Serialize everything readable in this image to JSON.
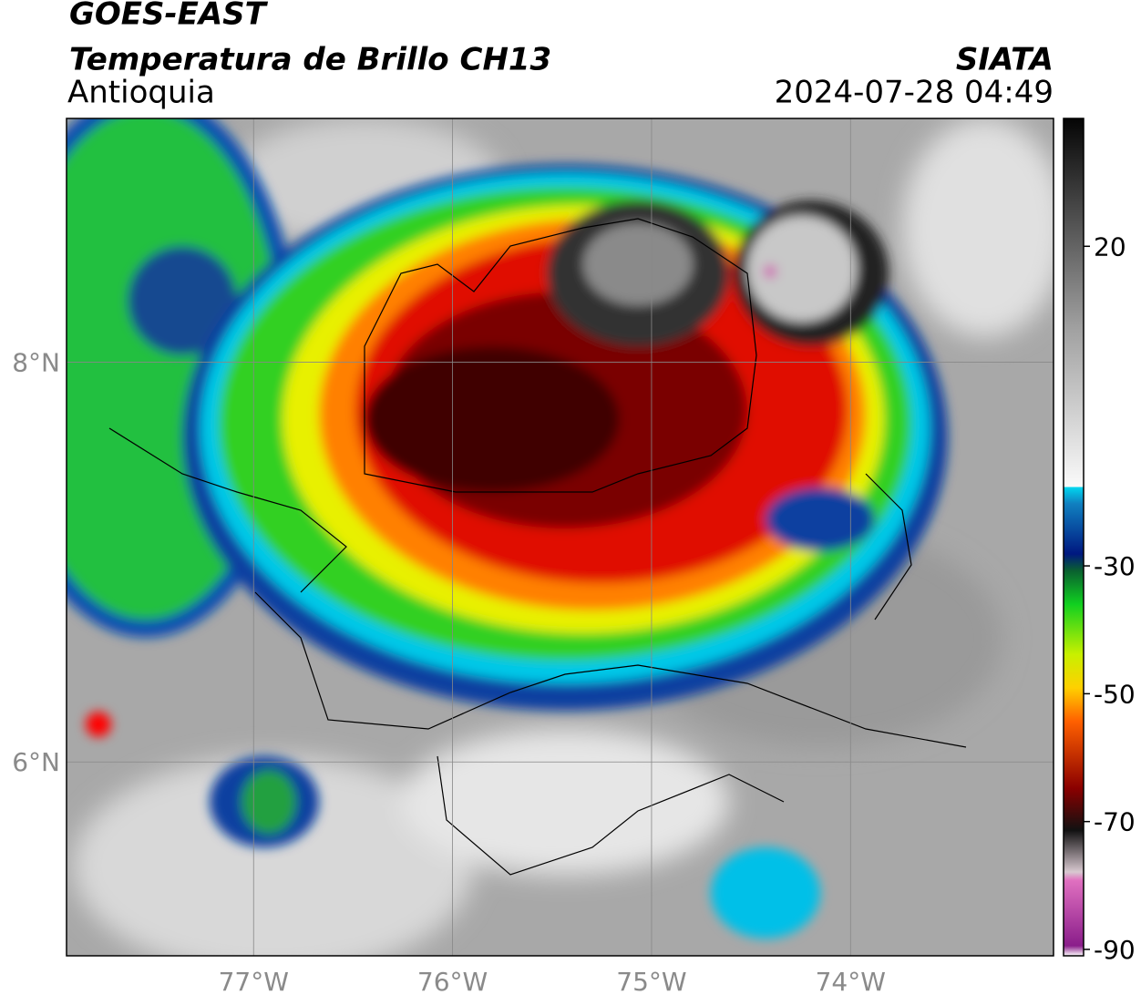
{
  "header": {
    "satellite": "GOES-EAST",
    "product": "Temperatura de Brillo CH13",
    "region": "Antioquia",
    "source": "SIATA",
    "datetime": "2024-07-28 04:49"
  },
  "map": {
    "xlim": [
      -77.94,
      -72.98
    ],
    "ylim": [
      5.03,
      9.22
    ],
    "xticks": [
      {
        "value": -77,
        "label": "77°W"
      },
      {
        "value": -76,
        "label": "76°W"
      },
      {
        "value": -75,
        "label": "75°W"
      },
      {
        "value": -74,
        "label": "74°W"
      }
    ],
    "yticks": [
      {
        "value": 8,
        "label": "8°N"
      },
      {
        "value": 6,
        "label": "6°N"
      }
    ],
    "grid": true
  },
  "colorbar": {
    "lim": [
      -91,
      40
    ],
    "ticks": [
      20,
      -30,
      -50,
      -70,
      -90
    ]
  }
}
